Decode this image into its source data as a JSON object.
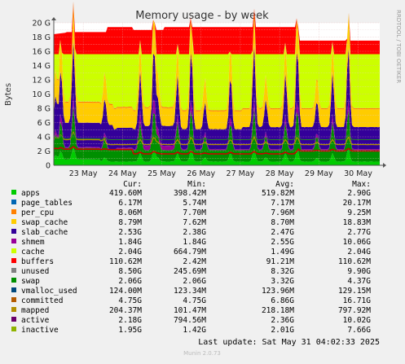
{
  "chart_data": {
    "type": "area",
    "title": "Memory usage - by week",
    "ylabel": "Bytes",
    "side_label": "RRDTOOL / TOBI OETIKER",
    "ylim": [
      0,
      20
    ],
    "y_unit": "G",
    "yticks": [
      "0",
      "2 G",
      "4 G",
      "6 G",
      "8 G",
      "10 G",
      "12 G",
      "14 G",
      "16 G",
      "18 G",
      "20 G"
    ],
    "xlabels": [
      "23 May",
      "24 May",
      "25 May",
      "26 May",
      "27 May",
      "28 May",
      "29 May",
      "30 May"
    ],
    "grid": true,
    "legend_placement": "bottom",
    "columns": [
      "Cur:",
      "Min:",
      "Avg:",
      "Max:"
    ],
    "series": [
      {
        "name": "apps",
        "color": "#00cc00",
        "cur": "419.60M",
        "min": "398.42M",
        "avg": "519.82M",
        "max": "2.90G"
      },
      {
        "name": "page_tables",
        "color": "#0066b3",
        "cur": "6.17M",
        "min": "5.74M",
        "avg": "7.17M",
        "max": "20.17M"
      },
      {
        "name": "per_cpu",
        "color": "#ff8000",
        "cur": "8.06M",
        "min": "7.70M",
        "avg": "7.96M",
        "max": "9.25M"
      },
      {
        "name": "swap_cache",
        "color": "#ffcc00",
        "cur": "8.79M",
        "min": "7.62M",
        "avg": "8.70M",
        "max": "18.83M"
      },
      {
        "name": "slab_cache",
        "color": "#330099",
        "cur": "2.53G",
        "min": "2.38G",
        "avg": "2.47G",
        "max": "2.77G"
      },
      {
        "name": "shmem",
        "color": "#990099",
        "cur": "1.84G",
        "min": "1.84G",
        "avg": "2.55G",
        "max": "10.06G"
      },
      {
        "name": "cache",
        "color": "#ccff00",
        "cur": "2.04G",
        "min": "664.79M",
        "avg": "1.49G",
        "max": "2.04G"
      },
      {
        "name": "buffers",
        "color": "#ff0000",
        "cur": "110.62M",
        "min": "2.42M",
        "avg": "91.21M",
        "max": "110.62M"
      },
      {
        "name": "unused",
        "color": "#808080",
        "cur": "8.50G",
        "min": "245.69M",
        "avg": "8.32G",
        "max": "9.90G"
      },
      {
        "name": "swap",
        "color": "#008f00",
        "cur": "2.06G",
        "min": "2.06G",
        "avg": "3.32G",
        "max": "4.37G"
      },
      {
        "name": "vmalloc_used",
        "color": "#00487d",
        "cur": "124.00M",
        "min": "123.34M",
        "avg": "123.96M",
        "max": "129.15M"
      },
      {
        "name": "committed",
        "color": "#b35a00",
        "cur": "4.75G",
        "min": "4.75G",
        "avg": "6.86G",
        "max": "16.71G"
      },
      {
        "name": "mapped",
        "color": "#b38f00",
        "cur": "204.37M",
        "min": "101.47M",
        "avg": "218.18M",
        "max": "797.92M"
      },
      {
        "name": "active",
        "color": "#6b006b",
        "cur": "2.18G",
        "min": "794.56M",
        "avg": "2.36G",
        "max": "10.02G"
      },
      {
        "name": "inactive",
        "color": "#8fb300",
        "cur": "1.95G",
        "min": "1.42G",
        "avg": "2.01G",
        "max": "7.66G"
      }
    ],
    "stack_colors": {
      "apps": "#00cc00",
      "swap": "#008f00",
      "shmem": "#990099",
      "slab_cache": "#330099",
      "cache": "#ffcc00",
      "buffers": "#ff8000",
      "unused": "#ccff00",
      "swap_top": "#ff0000"
    }
  },
  "footer": {
    "last_update": "Last update: Sat May 31 04:02:33 2025",
    "munin": "Munin 2.0.73"
  }
}
